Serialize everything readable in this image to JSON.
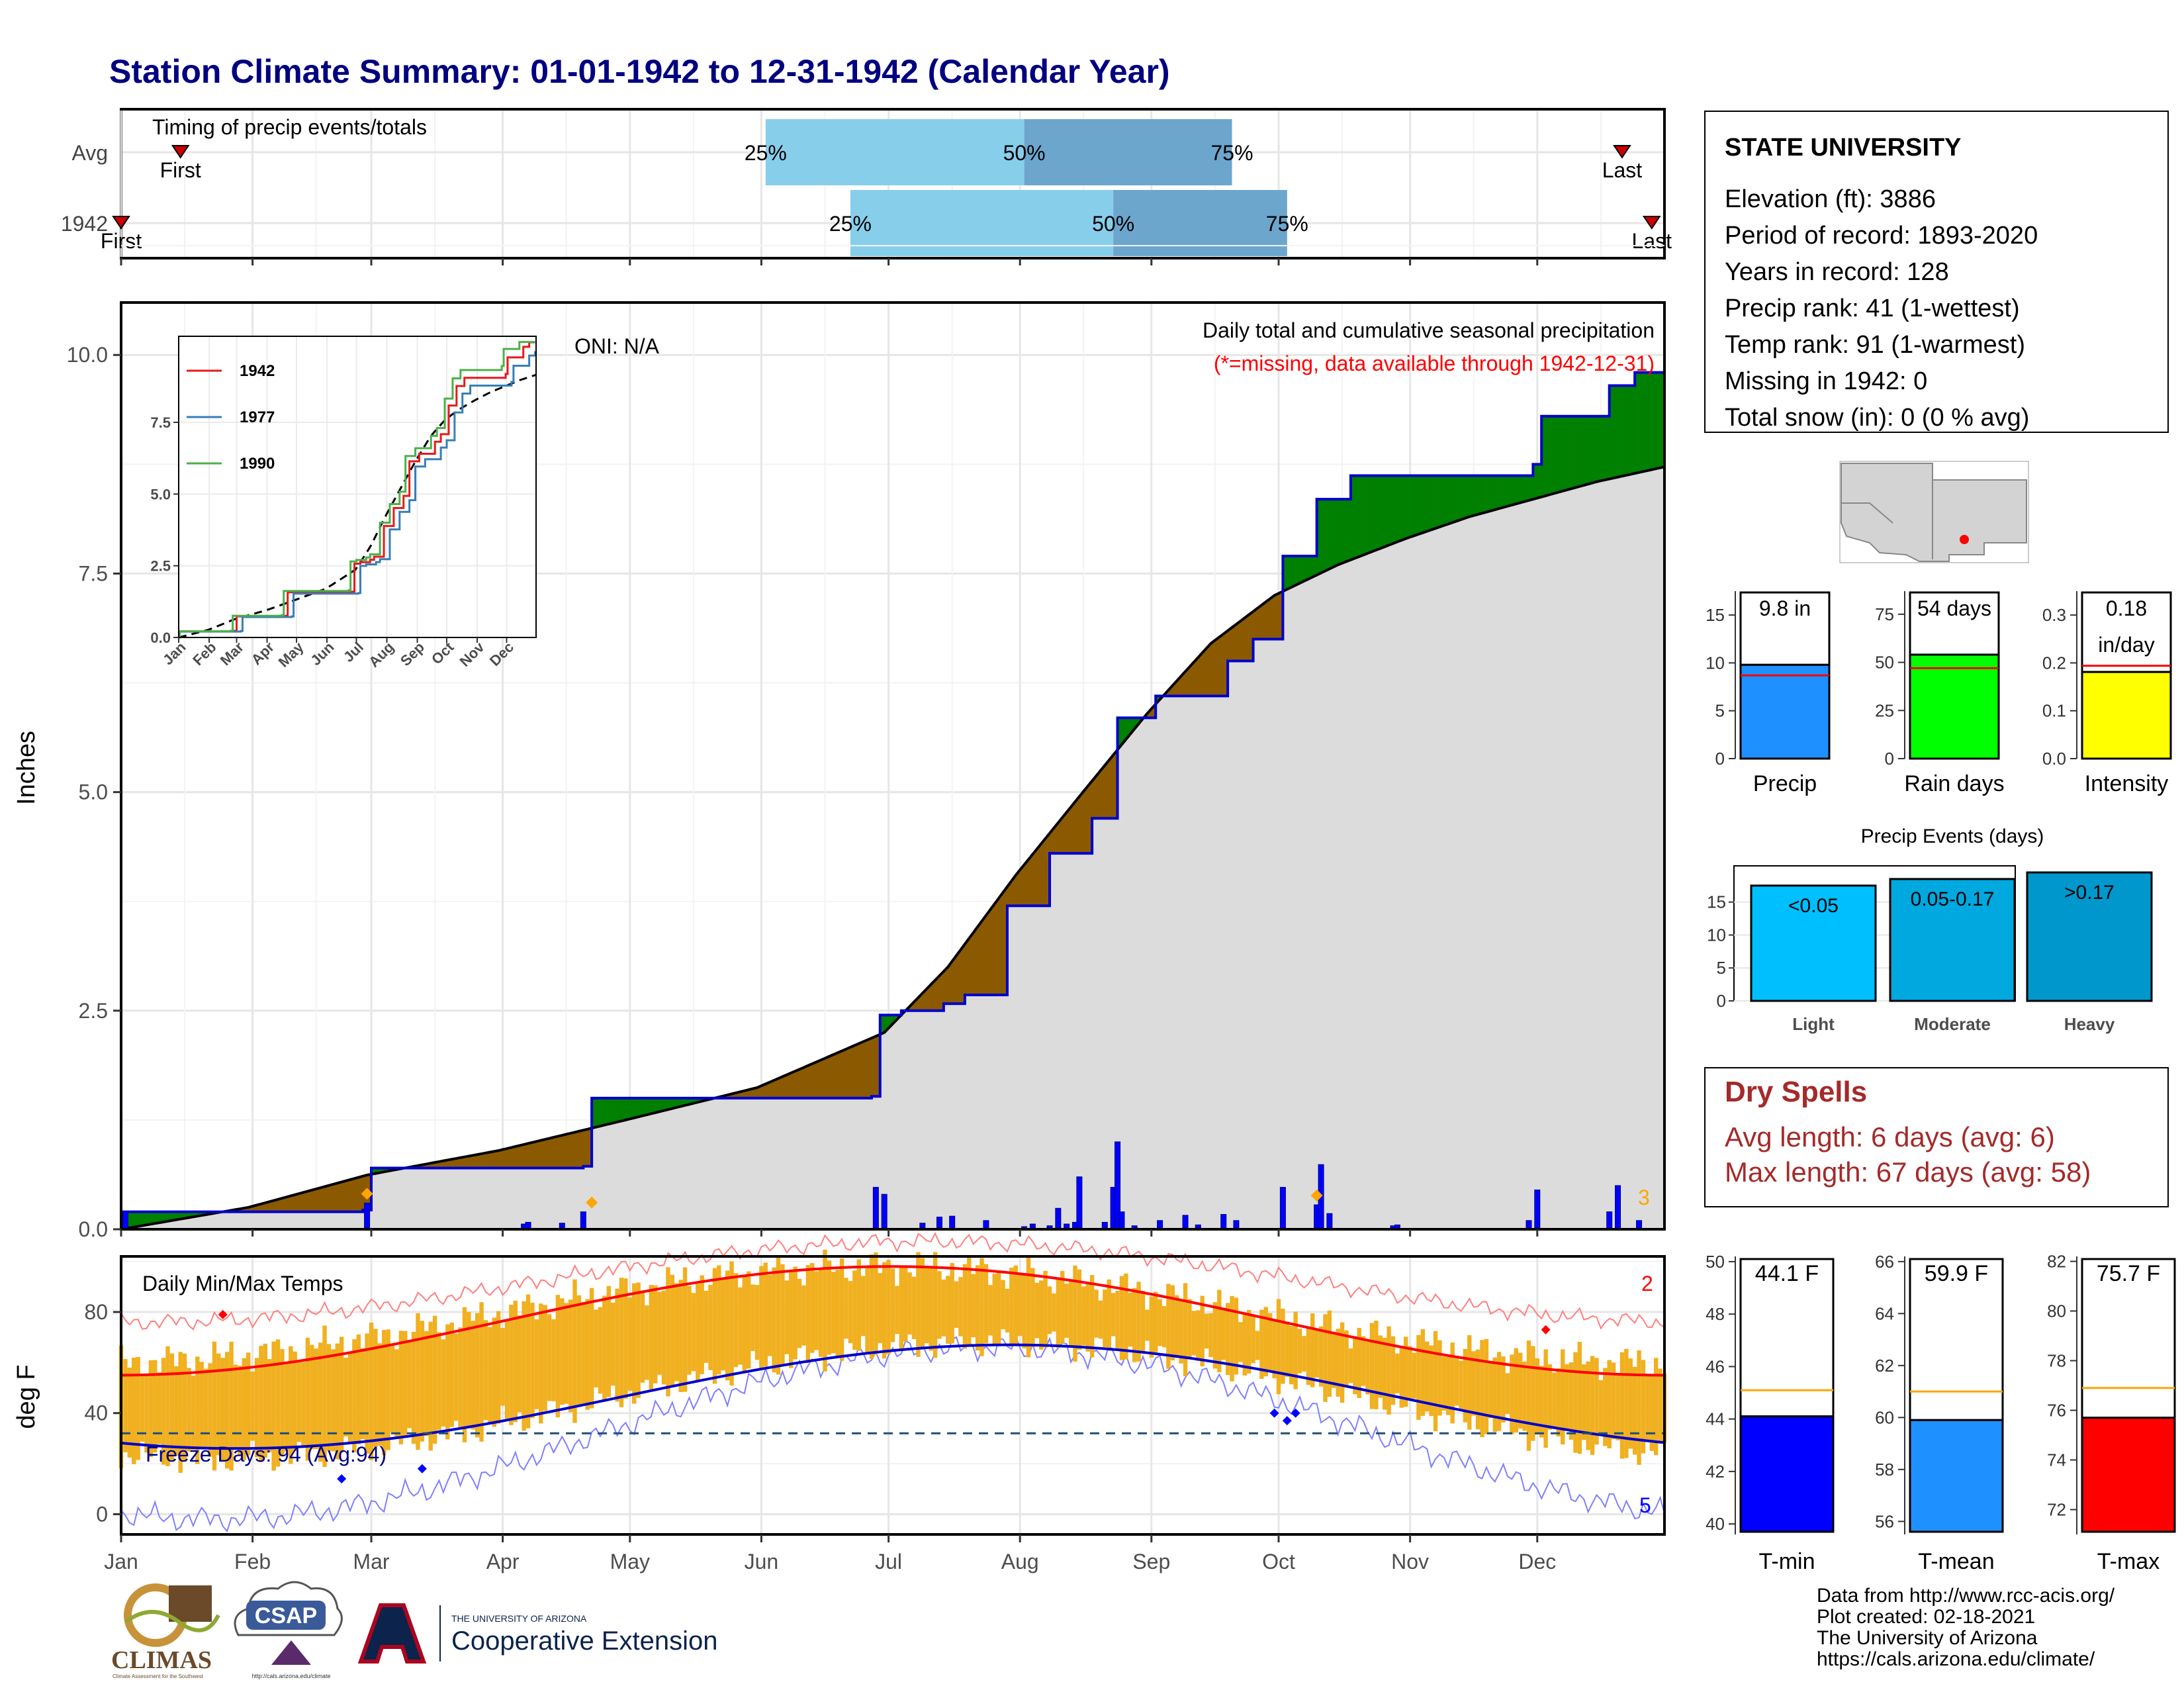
{
  "title": "Station Climate Summary: 01-01-1942 to 12-31-1942 (Calendar Year)",
  "colors": {
    "title": "#000080",
    "precip_bar": "#0000ff",
    "cum_line": "#0000cc",
    "above": "#008000",
    "below": "#8b5a00",
    "normal_fill": "#dcdcdc",
    "tmax": "#ff0000",
    "tmin": "#0000cc",
    "range_bar": "#f0b020",
    "timing_light": "#87ceeb",
    "timing_dark": "#6ca6cd",
    "precip_summary": "#1e90ff",
    "rain_days": "#00ff00",
    "intensity": "#ffff00",
    "light": "#00bfff",
    "moderate": "#00a8e0",
    "heavy": "#0098cc",
    "dry_spells": "#a52a2a",
    "tmin_box": "#0000ff",
    "tmean_box": "#1e90ff",
    "tmax_box": "#ff0000",
    "avg_line_temp": "#ffa500",
    "avg_line_precip": "#ff0000"
  },
  "timing": {
    "label": "Timing of precip events/totals",
    "rows": [
      {
        "name": "Avg",
        "p25": "Jun 2",
        "p50": "Aug 2",
        "p75": "Sep 20",
        "first_label": "First",
        "last_label": "Last",
        "first": "Jan 15",
        "last": "Dec 21"
      },
      {
        "name": "1942",
        "p25": "Jun 22",
        "p50": "Aug 23",
        "p75": "Oct 3",
        "first_label": "First",
        "last_label": "Last",
        "first": "Jan 1",
        "last": "Dec 28"
      }
    ],
    "pct_labels": [
      "25%",
      "50%",
      "75%"
    ]
  },
  "precip_panel": {
    "ylabel": "Inches",
    "yticks": [
      "0.0",
      "2.5",
      "5.0",
      "7.5",
      "10.0"
    ],
    "ylim": [
      0,
      10.6
    ],
    "oni": "ONI: N/A",
    "heading": "Daily total and cumulative seasonal precipitation",
    "missing_note": "(*=missing, data available through 1942-12-31)",
    "max_count": "3"
  },
  "temp_panel": {
    "ylabel": "deg F",
    "yticks": [
      "0",
      "40",
      "80"
    ],
    "ylim": [
      -8,
      102
    ],
    "heading": "Daily Min/Max Temps",
    "freeze": "Freeze Days: 94 (Avg:94)",
    "freeze_level": 32,
    "rec_high_count": "2",
    "rec_low_count": "5"
  },
  "months": [
    "Jan",
    "Feb",
    "Mar",
    "Apr",
    "May",
    "Jun",
    "Jul",
    "Aug",
    "Sep",
    "Oct",
    "Nov",
    "Dec"
  ],
  "inset": {
    "yticks": [
      "0.0",
      "2.5",
      "5.0",
      "7.5"
    ],
    "legend": [
      "1942",
      "1977",
      "1990"
    ],
    "legend_colors": [
      "#e41a1c",
      "#377eb8",
      "#4daf4a"
    ]
  },
  "station": {
    "name": "STATE UNIVERSITY",
    "lines": [
      "Elevation (ft): 3886",
      "Period of record: 1893-2020",
      "Years in record: 128",
      "Precip rank: 41 (1-wettest)",
      "Temp rank: 91 (1-warmest)",
      "Missing in 1942: 0",
      "Total snow (in): 0 (0 % avg)"
    ]
  },
  "summary_bars": [
    {
      "label": "Precip",
      "value_text": "9.8 in",
      "value": 9.8,
      "avg": 8.7,
      "ymax": 17.5,
      "yticks": [
        "0",
        "5",
        "10",
        "15"
      ],
      "tick_vals": [
        0,
        5,
        10,
        15
      ]
    },
    {
      "label": "Rain days",
      "value_text": "54 days",
      "value": 54,
      "avg": 47,
      "ymax": 87,
      "yticks": [
        "0",
        "25",
        "50",
        "75"
      ],
      "tick_vals": [
        0,
        25,
        50,
        75
      ]
    },
    {
      "label": "Intensity",
      "value_text": "0.18",
      "value_text2": "in/day",
      "value": 0.181,
      "avg": 0.194,
      "ymax": 0.35,
      "yticks": [
        "0.0",
        "0.1",
        "0.2",
        "0.3"
      ],
      "tick_vals": [
        0,
        0.1,
        0.2,
        0.3
      ]
    }
  ],
  "precip_events": {
    "title": "Precip Events (days)",
    "yticks": [
      "0",
      "5",
      "10",
      "15"
    ],
    "ymax": 19.5,
    "bars": [
      {
        "label": "Light",
        "range": "<0.05",
        "value": 17.5
      },
      {
        "label": "Moderate",
        "range": "0.05-0.17",
        "value": 18.5
      },
      {
        "label": "Heavy",
        "range": ">0.17",
        "value": 19.5
      }
    ]
  },
  "dry_spells": {
    "title": "Dry Spells",
    "avg": "Avg length: 6 days (avg: 6)",
    "max": "Max length: 67 days (avg: 58)"
  },
  "temp_boxes": [
    {
      "label": "T-min",
      "value_text": "44.1 F",
      "value": 44.1,
      "avg": 45.1,
      "ymin": 39.6,
      "ymax": 50.2,
      "yticks": [
        "40",
        "42",
        "44",
        "46",
        "48",
        "50"
      ],
      "tick_vals": [
        40,
        42,
        44,
        46,
        48,
        50
      ]
    },
    {
      "label": "T-mean",
      "value_text": "59.9 F",
      "value": 59.9,
      "avg": 61.0,
      "ymin": 55.5,
      "ymax": 66.2,
      "yticks": [
        "56",
        "58",
        "60",
        "62",
        "64",
        "66"
      ],
      "tick_vals": [
        56,
        58,
        60,
        62,
        64,
        66
      ]
    },
    {
      "label": "T-max",
      "value_text": "75.7 F",
      "value": 75.7,
      "avg": 76.9,
      "ymin": 71.0,
      "ymax": 82.2,
      "yticks": [
        "72",
        "74",
        "76",
        "78",
        "80",
        "82"
      ],
      "tick_vals": [
        72,
        74,
        76,
        78,
        80,
        82
      ]
    }
  ],
  "footer": {
    "lines": [
      "Data from http://www.rcc-acis.org/",
      "Plot created: 02-18-2021",
      "The University of Arizona",
      "https://cals.arizona.edu/climate/"
    ],
    "logos": {
      "climas": "CLIMAS",
      "climas_sub": "Climate Assessment for the Southwest",
      "csap": "CSAP",
      "csap_url": "http://cals.arizona.edu/climate",
      "ua_small": "THE UNIVERSITY OF ARIZONA",
      "ua_big": "Cooperative Extension"
    }
  },
  "chart_data": {
    "type": "area",
    "title": "Daily total and cumulative seasonal precipitation",
    "ylabel": "Inches",
    "ylim": [
      0,
      10.6
    ],
    "cumulative_1942_steps": [
      {
        "day": 1,
        "value": 0.2
      },
      {
        "day": 58,
        "value": 0.22
      },
      {
        "day": 60,
        "value": 0.7
      },
      {
        "day": 110,
        "value": 0.72
      },
      {
        "day": 112,
        "value": 1.5
      },
      {
        "day": 178,
        "value": 1.52
      },
      {
        "day": 180,
        "value": 2.45
      },
      {
        "day": 185,
        "value": 2.5
      },
      {
        "day": 195,
        "value": 2.58
      },
      {
        "day": 200,
        "value": 2.68
      },
      {
        "day": 210,
        "value": 3.7
      },
      {
        "day": 220,
        "value": 4.3
      },
      {
        "day": 230,
        "value": 4.7
      },
      {
        "day": 236,
        "value": 5.85
      },
      {
        "day": 245,
        "value": 6.1
      },
      {
        "day": 262,
        "value": 6.5
      },
      {
        "day": 268,
        "value": 6.75
      },
      {
        "day": 275,
        "value": 7.7
      },
      {
        "day": 283,
        "value": 8.35
      },
      {
        "day": 291,
        "value": 8.62
      },
      {
        "day": 334,
        "value": 8.75
      },
      {
        "day": 336,
        "value": 9.3
      },
      {
        "day": 352,
        "value": 9.65
      },
      {
        "day": 358,
        "value": 9.8
      }
    ],
    "cumulative_normal": [
      {
        "day": 1,
        "value": 0.0
      },
      {
        "day": 31,
        "value": 0.25
      },
      {
        "day": 59,
        "value": 0.62
      },
      {
        "day": 90,
        "value": 0.9
      },
      {
        "day": 120,
        "value": 1.25
      },
      {
        "day": 151,
        "value": 1.62
      },
      {
        "day": 181,
        "value": 2.25
      },
      {
        "day": 196,
        "value": 3.0
      },
      {
        "day": 212,
        "value": 4.05
      },
      {
        "day": 227,
        "value": 4.95
      },
      {
        "day": 243,
        "value": 5.9
      },
      {
        "day": 258,
        "value": 6.7
      },
      {
        "day": 273,
        "value": 7.25
      },
      {
        "day": 288,
        "value": 7.6
      },
      {
        "day": 304,
        "value": 7.9
      },
      {
        "day": 319,
        "value": 8.15
      },
      {
        "day": 334,
        "value": 8.35
      },
      {
        "day": 349,
        "value": 8.55
      },
      {
        "day": 365,
        "value": 8.72
      }
    ],
    "daily_precip": [
      {
        "day": 2,
        "value": 0.2
      },
      {
        "day": 59,
        "value": 0.3
      },
      {
        "day": 96,
        "value": 0.06
      },
      {
        "day": 97,
        "value": 0.08
      },
      {
        "day": 105,
        "value": 0.07
      },
      {
        "day": 110,
        "value": 0.2
      },
      {
        "day": 179,
        "value": 0.48
      },
      {
        "day": 181,
        "value": 0.4
      },
      {
        "day": 190,
        "value": 0.07
      },
      {
        "day": 194,
        "value": 0.14
      },
      {
        "day": 197,
        "value": 0.15
      },
      {
        "day": 205,
        "value": 0.1
      },
      {
        "day": 214,
        "value": 0.03
      },
      {
        "day": 216,
        "value": 0.06
      },
      {
        "day": 220,
        "value": 0.04
      },
      {
        "day": 222,
        "value": 0.24
      },
      {
        "day": 224,
        "value": 0.06
      },
      {
        "day": 226,
        "value": 0.08
      },
      {
        "day": 227,
        "value": 0.6
      },
      {
        "day": 233,
        "value": 0.08
      },
      {
        "day": 235,
        "value": 0.48
      },
      {
        "day": 236,
        "value": 1.0
      },
      {
        "day": 237,
        "value": 0.2
      },
      {
        "day": 240,
        "value": 0.04
      },
      {
        "day": 246,
        "value": 0.1
      },
      {
        "day": 252,
        "value": 0.16
      },
      {
        "day": 255,
        "value": 0.05
      },
      {
        "day": 261,
        "value": 0.17
      },
      {
        "day": 264,
        "value": 0.1
      },
      {
        "day": 275,
        "value": 0.48
      },
      {
        "day": 283,
        "value": 0.28
      },
      {
        "day": 284,
        "value": 0.74
      },
      {
        "day": 286,
        "value": 0.18
      },
      {
        "day": 301,
        "value": 0.04
      },
      {
        "day": 302,
        "value": 0.05
      },
      {
        "day": 333,
        "value": 0.1
      },
      {
        "day": 335,
        "value": 0.45
      },
      {
        "day": 352,
        "value": 0.2
      },
      {
        "day": 354,
        "value": 0.5
      },
      {
        "day": 359,
        "value": 0.1
      }
    ],
    "record_days": [
      59,
      112,
      283
    ]
  }
}
